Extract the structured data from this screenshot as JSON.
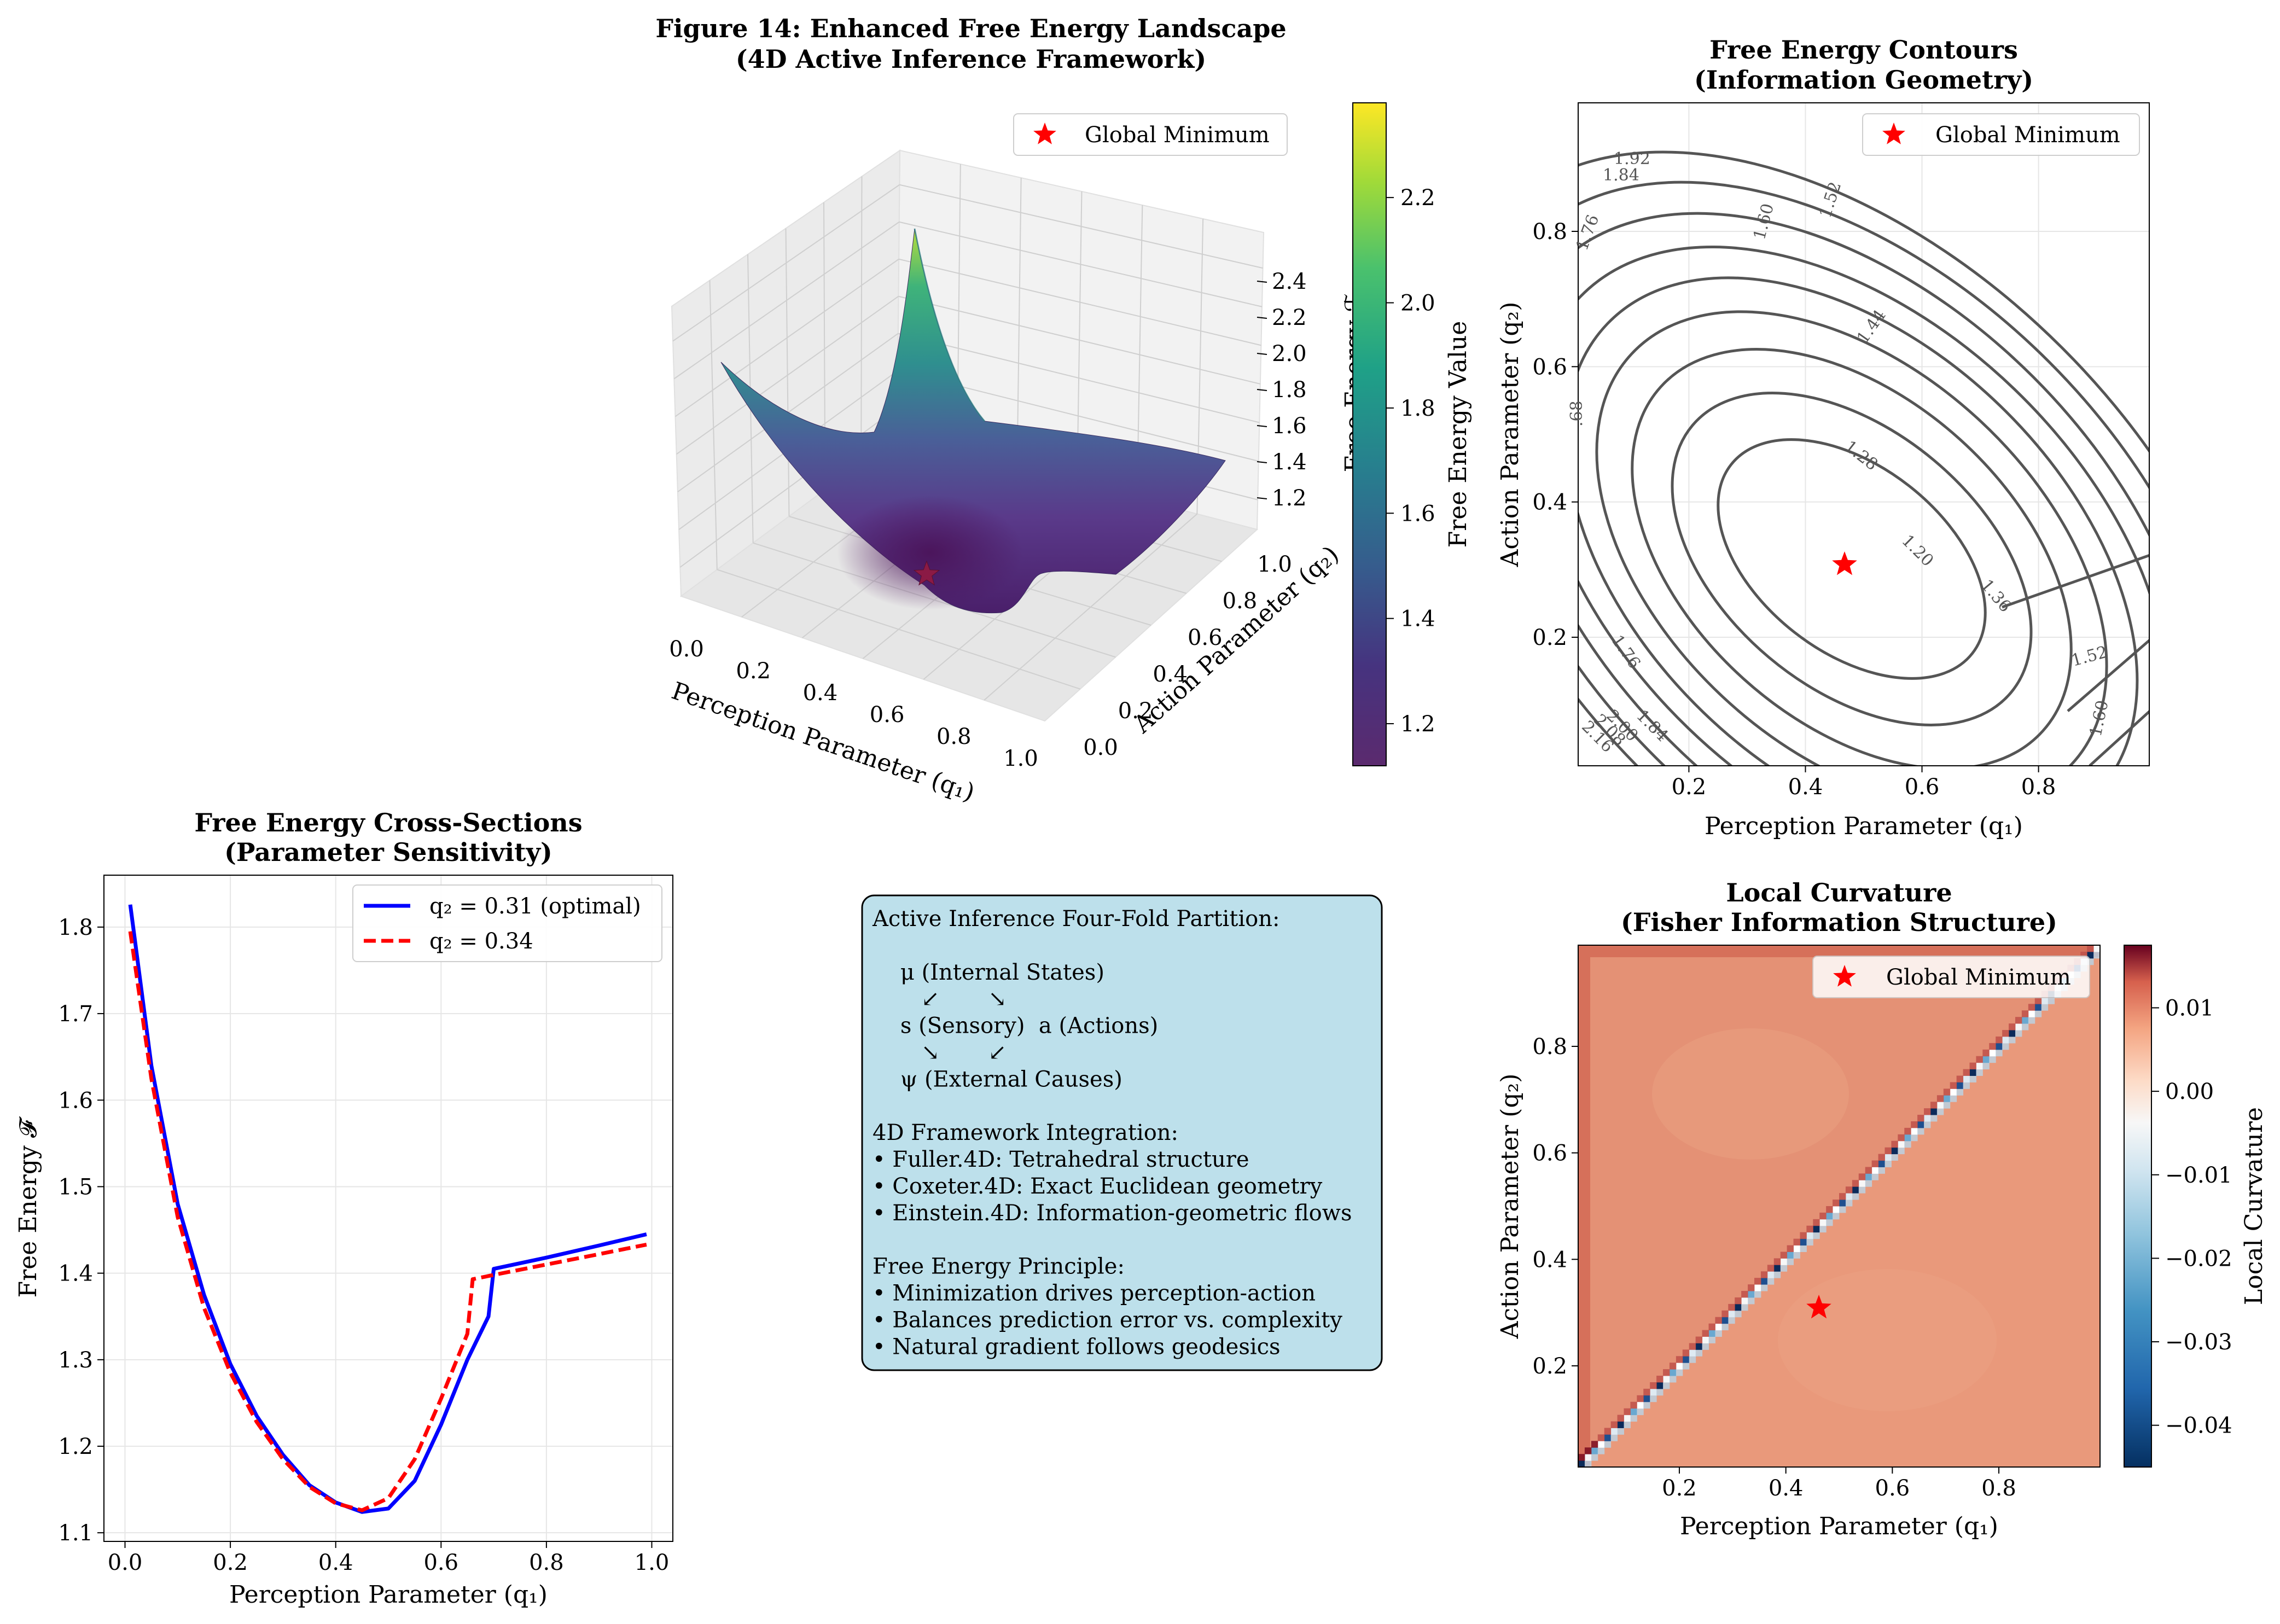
{
  "figure": {
    "title_line1": "Figure 14: Enhanced Free Energy Landscape",
    "title_line2": "(4D Active Inference Framework)"
  },
  "surface3d": {
    "legend": "Global Minimum",
    "xlabel": "Perception Parameter (q₁)",
    "ylabel": "Action Parameter (q₂)",
    "zlabel": "Free Energy ℱ",
    "xticks": [
      "0.0",
      "0.2",
      "0.4",
      "0.6",
      "0.8",
      "1.0"
    ],
    "yticks": [
      "0.0",
      "0.2",
      "0.4",
      "0.6",
      "0.8",
      "1.0"
    ],
    "zticks": [
      "1.2",
      "1.4",
      "1.6",
      "1.8",
      "2.0",
      "2.2",
      "2.4"
    ],
    "colorbar_label": "Free Energy Value",
    "colorbar_ticks": [
      "1.2",
      "1.4",
      "1.6",
      "1.8",
      "2.0",
      "2.2"
    ],
    "colormap": "viridis"
  },
  "contour": {
    "title_line1": "Free Energy Contours",
    "title_line2": "(Information Geometry)",
    "legend": "Global Minimum",
    "xlabel": "Perception Parameter (q₁)",
    "ylabel": "Action Parameter (q₂)",
    "xticks": [
      "0.2",
      "0.4",
      "0.6",
      "0.8"
    ],
    "yticks": [
      "0.2",
      "0.4",
      "0.6",
      "0.8"
    ],
    "contour_labels": [
      "1.92",
      "1.84",
      "1.76",
      "1.60",
      "1.52",
      "1.44",
      "1.28",
      "1.20",
      "1.36",
      "1.52",
      "1.60",
      "1.76",
      "1.84",
      "2.00",
      "2.08",
      "2.16",
      ".68"
    ]
  },
  "cross": {
    "title_line1": "Free Energy Cross-Sections",
    "title_line2": "(Parameter Sensitivity)",
    "legend1": "q₂ = 0.31 (optimal)",
    "legend2": "q₂ = 0.34",
    "xlabel": "Perception Parameter (q₁)",
    "ylabel": "Free Energy 𝓕",
    "xticks": [
      "0.0",
      "0.2",
      "0.4",
      "0.6",
      "0.8",
      "1.0"
    ],
    "yticks": [
      "1.1",
      "1.2",
      "1.3",
      "1.4",
      "1.5",
      "1.6",
      "1.7",
      "1.8"
    ]
  },
  "textbox": {
    "lines": [
      "Active Inference Four-Fold Partition:",
      "",
      "    μ (Internal States)",
      "       ↙       ↘",
      "    s (Sensory)  a (Actions)",
      "       ↘       ↙",
      "    ψ (External Causes)",
      "",
      "4D Framework Integration:",
      "• Fuller.4D: Tetrahedral structure",
      "• Coxeter.4D: Exact Euclidean geometry",
      "• Einstein.4D: Information-geometric flows",
      "",
      "Free Energy Principle:",
      "• Minimization drives perception-action",
      "• Balances prediction error vs. complexity",
      "• Natural gradient follows geodesics"
    ]
  },
  "curvature": {
    "title_line1": "Local Curvature",
    "title_line2": "(Fisher Information Structure)",
    "legend": "Global Minimum",
    "xlabel": "Perception Parameter (q₁)",
    "ylabel": "Action Parameter (q₂)",
    "xticks": [
      "0.2",
      "0.4",
      "0.6",
      "0.8"
    ],
    "yticks": [
      "0.2",
      "0.4",
      "0.6",
      "0.8"
    ],
    "colorbar_label": "Local Curvature",
    "colorbar_ticks": [
      "0.01",
      "0.00",
      "−0.01",
      "−0.02",
      "−0.03",
      "−0.04"
    ],
    "colormap": "RdBu_r"
  },
  "chart_data": [
    {
      "type": "surface3d",
      "title": "Figure 14: Enhanced Free Energy Landscape (4D Active Inference Framework)",
      "xlabel": "Perception Parameter (q₁)",
      "ylabel": "Action Parameter (q₂)",
      "zlabel": "Free Energy ℱ",
      "xlim": [
        0,
        1
      ],
      "ylim": [
        0,
        1
      ],
      "zlim": [
        1.12,
        2.5
      ],
      "colorbar": {
        "label": "Free Energy Value",
        "range": [
          1.12,
          2.38
        ]
      },
      "global_minimum": {
        "x": 0.46,
        "y": 0.31,
        "z": 1.12
      },
      "legend": [
        "Global Minimum"
      ],
      "legend_position": "top-right"
    },
    {
      "type": "contour",
      "title": "Free Energy Contours (Information Geometry)",
      "xlabel": "Perception Parameter (q₁)",
      "ylabel": "Action Parameter (q₂)",
      "xlim": [
        0.01,
        0.99
      ],
      "ylim": [
        0.01,
        0.99
      ],
      "levels": [
        1.2,
        1.28,
        1.36,
        1.44,
        1.52,
        1.6,
        1.68,
        1.76,
        1.84,
        1.92,
        2.0,
        2.08,
        2.16
      ],
      "global_minimum": {
        "x": 0.46,
        "y": 0.31
      },
      "grid": true,
      "legend": [
        "Global Minimum"
      ],
      "legend_position": "top-right"
    },
    {
      "type": "line",
      "title": "Free Energy Cross-Sections (Parameter Sensitivity)",
      "xlabel": "Perception Parameter (q₁)",
      "ylabel": "Free Energy 𝓕",
      "xlim": [
        -0.04,
        1.04
      ],
      "ylim": [
        1.09,
        1.86
      ],
      "grid": true,
      "legend_position": "top-right",
      "series": [
        {
          "name": "q₂ = 0.31 (optimal)",
          "color": "#0000ff",
          "style": "solid",
          "x": [
            0.01,
            0.05,
            0.1,
            0.15,
            0.2,
            0.25,
            0.3,
            0.35,
            0.4,
            0.45,
            0.5,
            0.55,
            0.6,
            0.65,
            0.69,
            0.7,
            0.8,
            0.9,
            0.99
          ],
          "y": [
            1.826,
            1.64,
            1.48,
            1.375,
            1.295,
            1.235,
            1.19,
            1.155,
            1.135,
            1.124,
            1.128,
            1.16,
            1.225,
            1.3,
            1.35,
            1.405,
            1.418,
            1.432,
            1.445
          ]
        },
        {
          "name": "q₂ = 0.34",
          "color": "#ff0000",
          "style": "dashed",
          "x": [
            0.01,
            0.05,
            0.1,
            0.15,
            0.2,
            0.25,
            0.3,
            0.35,
            0.4,
            0.45,
            0.5,
            0.55,
            0.6,
            0.65,
            0.66,
            0.7,
            0.8,
            0.9,
            0.99
          ],
          "y": [
            1.795,
            1.625,
            1.465,
            1.36,
            1.285,
            1.228,
            1.185,
            1.153,
            1.134,
            1.126,
            1.14,
            1.185,
            1.255,
            1.33,
            1.393,
            1.398,
            1.41,
            1.422,
            1.433
          ]
        }
      ]
    },
    {
      "type": "heatmap",
      "title": "Local Curvature (Fisher Information Structure)",
      "xlabel": "Perception Parameter (q₁)",
      "ylabel": "Action Parameter (q₂)",
      "xlim": [
        0.01,
        0.99
      ],
      "ylim": [
        0.01,
        0.99
      ],
      "colorbar": {
        "label": "Local Curvature",
        "range": [
          -0.045,
          0.0175
        ]
      },
      "regions": {
        "upper_left": 0.0045,
        "lower_right": 0.004,
        "diagonal": [
          -0.045,
          0.0175
        ]
      },
      "global_minimum": {
        "x": 0.46,
        "y": 0.31
      },
      "legend": [
        "Global Minimum"
      ],
      "legend_position": "top-right"
    }
  ]
}
